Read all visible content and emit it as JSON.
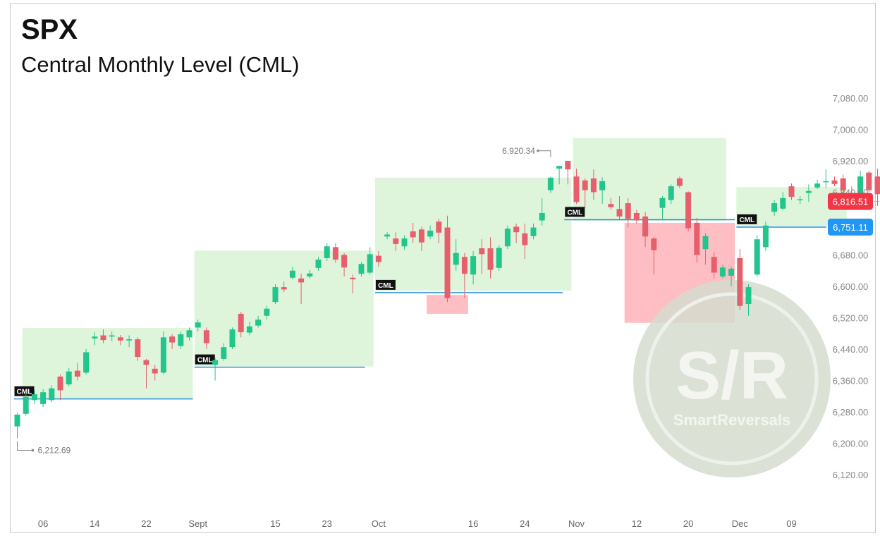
{
  "header": {
    "title": "SPX",
    "subtitle": "Central Monthly Level (CML)"
  },
  "watermark": {
    "big": "S/R",
    "small": "SmartReversals"
  },
  "colors": {
    "up": "#22c58b",
    "down": "#e65f6c",
    "zone": "#dff5db",
    "cml_line": "#2b8fe0",
    "red_zone": "#ffb3b8",
    "price_tag": "#f23645",
    "cml_tag": "#2196f3"
  },
  "chart_data": {
    "type": "candlestick",
    "title": "SPX",
    "subtitle": "Central Monthly Level (CML)",
    "y_axis": {
      "min": 6120,
      "max": 7080,
      "step": 80,
      "ticks": [
        "7,080.00",
        "7,000.00",
        "6,920.00",
        "6,840.00",
        "6,760.00",
        "6,680.00",
        "6,600.00",
        "6,520.00",
        "6,440.00",
        "6,360.00",
        "6,280.00",
        "6,200.00",
        "6,120.00"
      ]
    },
    "x_axis": {
      "labels": [
        {
          "label": "06",
          "bar": 3
        },
        {
          "label": "14",
          "bar": 9
        },
        {
          "label": "22",
          "bar": 15
        },
        {
          "label": "Sept",
          "bar": 21
        },
        {
          "label": "15",
          "bar": 30
        },
        {
          "label": "23",
          "bar": 36
        },
        {
          "label": "Oct",
          "bar": 42
        },
        {
          "label": "16",
          "bar": 53
        },
        {
          "label": "24",
          "bar": 59
        },
        {
          "label": "Nov",
          "bar": 65
        },
        {
          "label": "12",
          "bar": 72
        },
        {
          "label": "20",
          "bar": 78
        },
        {
          "label": "Dec",
          "bar": 84
        },
        {
          "label": "09",
          "bar": 90
        }
      ]
    },
    "candles": [
      [
        6243,
        6273,
        6212.69,
        6278
      ],
      [
        6275,
        6318,
        6270,
        6325
      ],
      [
        6310,
        6325,
        6300,
        6335
      ],
      [
        6300,
        6330,
        6292,
        6338
      ],
      [
        6310,
        6340,
        6305,
        6348
      ],
      [
        6370,
        6335,
        6310,
        6375
      ],
      [
        6350,
        6383,
        6345,
        6392
      ],
      [
        6385,
        6370,
        6360,
        6405
      ],
      [
        6380,
        6432,
        6375,
        6440
      ],
      [
        6467,
        6472,
        6450,
        6483
      ],
      [
        6475,
        6463,
        6455,
        6490
      ],
      [
        6472,
        6475,
        6460,
        6485
      ],
      [
        6470,
        6462,
        6450,
        6476
      ],
      [
        6462,
        6465,
        6445,
        6475
      ],
      [
        6465,
        6420,
        6410,
        6470
      ],
      [
        6412,
        6400,
        6340,
        6415
      ],
      [
        6390,
        6378,
        6360,
        6400
      ],
      [
        6380,
        6470,
        6375,
        6485
      ],
      [
        6472,
        6457,
        6440,
        6478
      ],
      [
        6448,
        6478,
        6440,
        6485
      ],
      [
        6470,
        6488,
        6462,
        6495
      ],
      [
        6495,
        6508,
        6485,
        6515
      ],
      [
        6488,
        6455,
        6440,
        6495
      ],
      [
        6400,
        6412,
        6360,
        6418
      ],
      [
        6415,
        6445,
        6410,
        6455
      ],
      [
        6445,
        6490,
        6440,
        6495
      ],
      [
        6530,
        6483,
        6470,
        6535
      ],
      [
        6482,
        6498,
        6475,
        6510
      ],
      [
        6500,
        6515,
        6495,
        6525
      ],
      [
        6525,
        6543,
        6515,
        6550
      ],
      [
        6560,
        6598,
        6555,
        6605
      ],
      [
        6598,
        6592,
        6585,
        6612
      ],
      [
        6622,
        6640,
        6618,
        6650
      ],
      [
        6620,
        6610,
        6555,
        6632
      ],
      [
        6625,
        6633,
        6620,
        6642
      ],
      [
        6647,
        6668,
        6640,
        6675
      ],
      [
        6672,
        6702,
        6665,
        6710
      ],
      [
        6700,
        6668,
        6660,
        6710
      ],
      [
        6680,
        6648,
        6625,
        6685
      ],
      [
        6622,
        6618,
        6582,
        6630
      ],
      [
        6632,
        6657,
        6625,
        6662
      ],
      [
        6635,
        6682,
        6630,
        6700
      ],
      [
        6678,
        6662,
        6650,
        6690
      ],
      [
        6727,
        6732,
        6720,
        6738
      ],
      [
        6722,
        6708,
        6690,
        6738
      ],
      [
        6702,
        6722,
        6693,
        6730
      ],
      [
        6740,
        6725,
        6710,
        6762
      ],
      [
        6745,
        6712,
        6690,
        6752
      ],
      [
        6727,
        6742,
        6720,
        6755
      ],
      [
        6765,
        6737,
        6710,
        6772
      ],
      [
        6750,
        6570,
        6560,
        6780
      ],
      [
        6655,
        6685,
        6640,
        6720
      ],
      [
        6675,
        6632,
        6570,
        6685
      ],
      [
        6630,
        6677,
        6605,
        6690
      ],
      [
        6697,
        6682,
        6632,
        6720
      ],
      [
        6697,
        6642,
        6620,
        6725
      ],
      [
        6647,
        6698,
        6640,
        6705
      ],
      [
        6702,
        6747,
        6695,
        6755
      ],
      [
        6752,
        6738,
        6710,
        6760
      ],
      [
        6735,
        6705,
        6670,
        6760
      ],
      [
        6728,
        6750,
        6720,
        6760
      ],
      [
        6768,
        6787,
        6755,
        6825
      ],
      [
        6845,
        6877,
        6838,
        6880
      ],
      [
        6900,
        6907,
        6860,
        6907
      ],
      [
        6920,
        6898,
        6860,
        6920.34
      ],
      [
        6880,
        6815,
        6810,
        6900
      ],
      [
        6870,
        6845,
        6800,
        6875
      ],
      [
        6875,
        6840,
        6820,
        6898
      ],
      [
        6845,
        6868,
        6810,
        6878
      ],
      [
        6810,
        6802,
        6795,
        6825
      ],
      [
        6797,
        6778,
        6770,
        6830
      ],
      [
        6812,
        6772,
        6750,
        6825
      ],
      [
        6787,
        6768,
        6760,
        6795
      ],
      [
        6778,
        6727,
        6700,
        6790
      ],
      [
        6722,
        6692,
        6630,
        6725
      ],
      [
        6800,
        6825,
        6770,
        6830
      ],
      [
        6820,
        6855,
        6810,
        6860
      ],
      [
        6875,
        6856,
        6850,
        6880
      ],
      [
        6840,
        6748,
        6740,
        6842
      ],
      [
        6762,
        6680,
        6660,
        6775
      ],
      [
        6695,
        6728,
        6655,
        6735
      ],
      [
        6675,
        6635,
        6620,
        6688
      ],
      [
        6625,
        6648,
        6620,
        6655
      ],
      [
        6627,
        6645,
        6600,
        6650
      ],
      [
        6672,
        6550,
        6540,
        6695
      ],
      [
        6555,
        6598,
        6525,
        6605
      ],
      [
        6630,
        6720,
        6625,
        6730
      ],
      [
        6700,
        6755,
        6690,
        6765
      ],
      [
        6790,
        6812,
        6780,
        6820
      ],
      [
        6798,
        6825,
        6795,
        6840
      ],
      [
        6855,
        6828,
        6820,
        6862
      ],
      [
        6820,
        6822,
        6810,
        6830
      ],
      [
        6838,
        6843,
        6815,
        6860
      ],
      [
        6852,
        6862,
        6848,
        6872
      ],
      [
        6867,
        6868,
        6850,
        6898
      ],
      [
        6870,
        6861,
        6855,
        6880
      ],
      [
        6875,
        6845,
        6830,
        6885
      ],
      [
        6835,
        6833,
        6810,
        6855
      ],
      [
        6835,
        6880,
        6830,
        6895
      ],
      [
        6890,
        6845,
        6840,
        6895
      ],
      [
        6880,
        6835,
        6805,
        6900
      ],
      [
        6850,
        6817,
        6810,
        6855
      ]
    ],
    "zones": [
      {
        "from": 1,
        "to": 20,
        "y_top": 6494,
        "y_bottom": 6312
      },
      {
        "from": 21,
        "to": 41,
        "y_top": 6691,
        "y_bottom": 6396
      },
      {
        "from": 42,
        "to": 64,
        "y_top": 6877,
        "y_bottom": 6589
      },
      {
        "from": 65,
        "to": 82,
        "y_top": 6978,
        "y_bottom": 6767
      },
      {
        "from": 84,
        "to": 96,
        "y_top": 6853,
        "y_bottom": 6753
      }
    ],
    "red_zones": [
      {
        "from": 48,
        "to": 52,
        "y_top": 6578,
        "y_bottom": 6530
      },
      {
        "from": 71,
        "to": 83,
        "y_top": 6762,
        "y_bottom": 6507
      }
    ],
    "cml_levels": [
      {
        "label": "CML",
        "from": 0,
        "to": 20,
        "value": 6313
      },
      {
        "label": "CML",
        "from": 21,
        "to": 40,
        "value": 6394
      },
      {
        "label": "CML",
        "from": 42,
        "to": 63,
        "value": 6584
      },
      {
        "label": "CML",
        "from": 64,
        "to": 83,
        "value": 6770
      },
      {
        "label": "CML",
        "from": 84,
        "to": 97,
        "value": 6751.11
      }
    ],
    "annotations": [
      {
        "text": "6,920.34",
        "bar": 62,
        "value": 6920.34,
        "type": "high"
      },
      {
        "text": "6,212.69",
        "bar": 0,
        "value": 6212.69,
        "type": "low"
      }
    ],
    "last_price": {
      "text": "6,816.51",
      "value": 6816.51
    },
    "cml_price": {
      "text": "6,751.11",
      "value": 6751.11
    }
  }
}
